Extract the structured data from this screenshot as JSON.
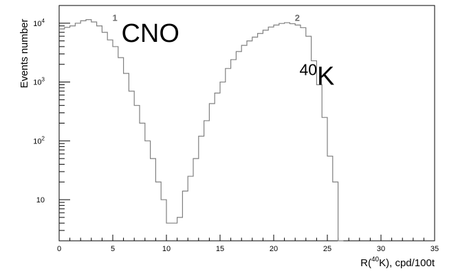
{
  "chart_data": {
    "type": "histogram-step",
    "xlabel_prefix": "R(",
    "xlabel_sup": "40",
    "xlabel_suffix": "K), cpd/100t",
    "ylabel": "Events number",
    "xlim": [
      0,
      35
    ],
    "ylim": [
      2,
      20000
    ],
    "yscale": "log",
    "grid": false,
    "x_ticks": [
      0,
      5,
      10,
      15,
      20,
      25,
      30,
      35
    ],
    "y_ticks": [
      {
        "value": 10,
        "base": "10",
        "exp": ""
      },
      {
        "value": 100,
        "base": "10",
        "exp": "2"
      },
      {
        "value": 1000,
        "base": "10",
        "exp": "3"
      },
      {
        "value": 10000,
        "base": "10",
        "exp": "4"
      }
    ],
    "bin_width": 0.5,
    "bin_start": 0,
    "series": [
      {
        "color": "#7f7f7f",
        "values": [
          8000,
          8500,
          9000,
          10000,
          11000,
          11500,
          10500,
          9000,
          7000,
          5200,
          4000,
          2600,
          1400,
          700,
          400,
          200,
          100,
          50,
          20,
          10,
          4,
          4,
          5,
          14,
          25,
          50,
          120,
          220,
          430,
          650,
          1000,
          1700,
          2400,
          3300,
          4200,
          5000,
          5800,
          6700,
          7600,
          8600,
          9300,
          9900,
          10200,
          9800,
          9300,
          8400,
          6000,
          2300,
          900,
          250,
          55,
          20,
          2
        ]
      }
    ],
    "peak_labels": [
      {
        "text": "1",
        "x": 5.2,
        "y": 11000
      },
      {
        "text": "2",
        "x": 22.2,
        "y": 11000
      }
    ],
    "annotations": [
      {
        "base": "CNO",
        "sup": "",
        "x": 5.8,
        "y": 4800
      },
      {
        "base": "K",
        "sup": "40",
        "x": 22.4,
        "y": 900
      }
    ]
  }
}
